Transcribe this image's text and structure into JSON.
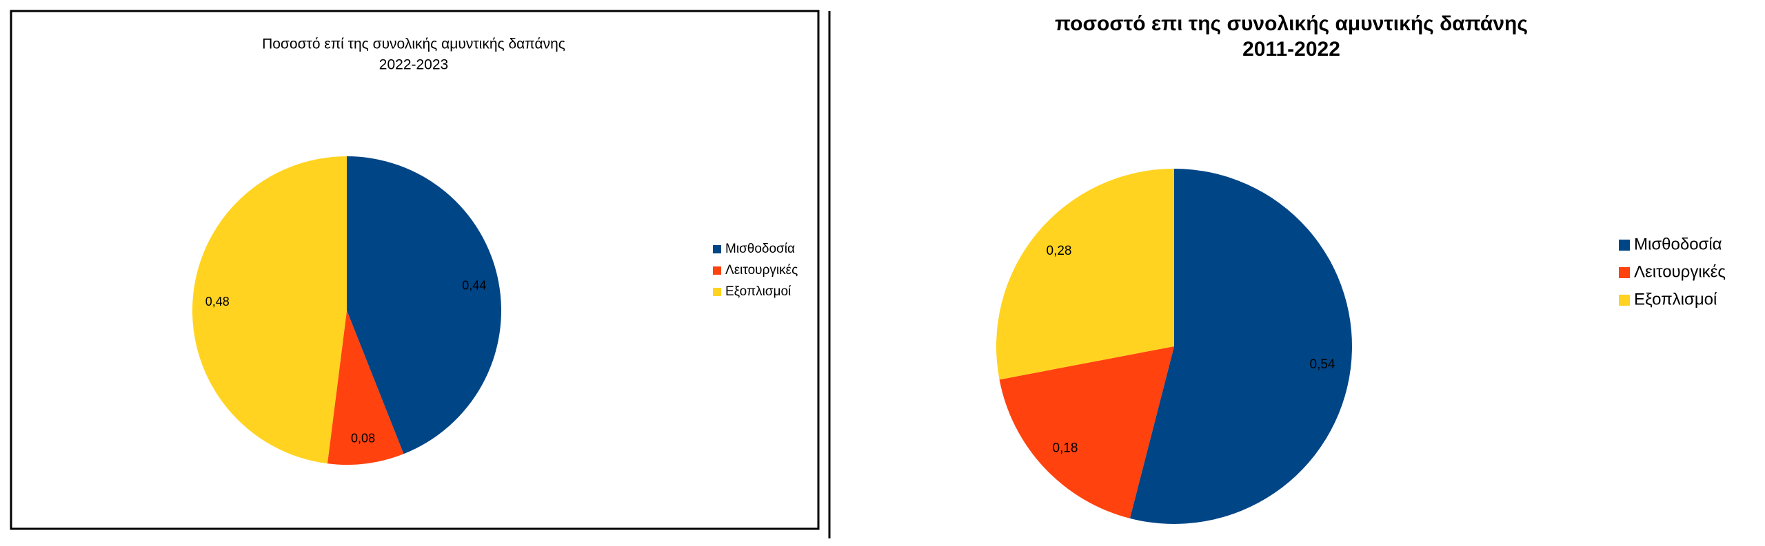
{
  "chart_data": [
    {
      "type": "pie",
      "title": "Ποσοστό επί της συνολικής αμυντικής δαπάνης",
      "subtitle": "2022-2023",
      "categories": [
        "Μισθοδοσία",
        "Λειτουργικές",
        "Εξοπλισμοί"
      ],
      "values": [
        0.44,
        0.08,
        0.48
      ],
      "value_labels": [
        "0,44",
        "0,08",
        "0,48"
      ],
      "colors": [
        "#004586",
        "#ff420e",
        "#ffd320"
      ],
      "legend": "right"
    },
    {
      "type": "pie",
      "title": "ποσοστό επι της συνολικής αμυντικής δαπάνης",
      "subtitle": "2011-2022",
      "categories": [
        "Μισθοδοσία",
        "Λειτουργικές",
        "Εξοπλισμοί"
      ],
      "values": [
        0.54,
        0.18,
        0.28
      ],
      "value_labels": [
        "0,54",
        "0,18",
        "0,28"
      ],
      "colors": [
        "#004586",
        "#ff420e",
        "#ffd320"
      ],
      "legend": "right"
    }
  ]
}
